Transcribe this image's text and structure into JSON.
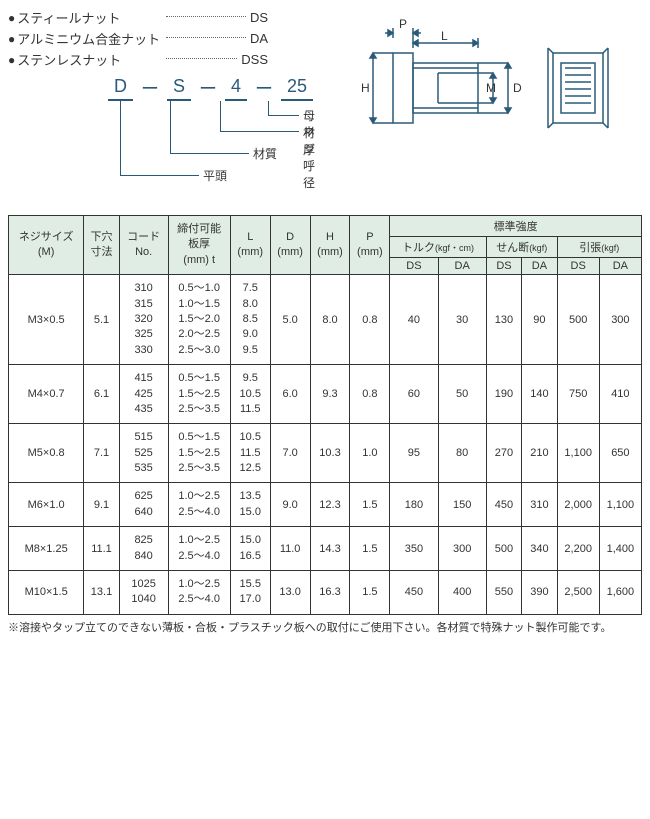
{
  "legend": [
    {
      "label": "スティールナット",
      "code": "DS"
    },
    {
      "label": "アルミニウム合金ナット",
      "code": "DA"
    },
    {
      "label": "ステンレスナット",
      "code": "DSS"
    }
  ],
  "codeDiagram": {
    "parts": [
      "D",
      "S",
      "4",
      "25"
    ],
    "labels": {
      "p0": "平頭",
      "p1": "材質",
      "p2": "ネジ呼径",
      "p3": "母材厚"
    }
  },
  "diagramLabels": {
    "P": "P",
    "L": "L",
    "H": "H",
    "M": "M",
    "D": "D"
  },
  "headers": {
    "size": "ネジサイズ\n(M)",
    "hole": "下穴\n寸法",
    "code": "コード\nNo.",
    "thickness": "締付可能\n板厚\n(mm) t",
    "L": "L\n(mm)",
    "D": "D\n(mm)",
    "H": "H\n(mm)",
    "P": "P\n(mm)",
    "strength": "標準強度",
    "torque": "トルク",
    "torqueUnit": "(kgf・cm)",
    "shear": "せん断",
    "shearUnit": "(kgf)",
    "tensile": "引張",
    "tensileUnit": "(kgf)",
    "DS": "DS",
    "DA": "DA"
  },
  "rows": [
    {
      "size": "M3×0.5",
      "hole": "5.1",
      "codes": "310\n315\n320\n325\n330",
      "thick": "0.5～1.0\n1.0～1.5\n1.5～2.0\n2.0～2.5\n2.5～3.0",
      "L": "7.5\n8.0\n8.5\n9.0\n9.5",
      "D": "5.0",
      "H": "8.0",
      "P": "0.8",
      "t_ds": "40",
      "t_da": "30",
      "s_ds": "130",
      "s_da": "90",
      "p_ds": "500",
      "p_da": "300"
    },
    {
      "size": "M4×0.7",
      "hole": "6.1",
      "codes": "415\n425\n435",
      "thick": "0.5～1.5\n1.5～2.5\n2.5～3.5",
      "L": "9.5\n10.5\n11.5",
      "D": "6.0",
      "H": "9.3",
      "P": "0.8",
      "t_ds": "60",
      "t_da": "50",
      "s_ds": "190",
      "s_da": "140",
      "p_ds": "750",
      "p_da": "410"
    },
    {
      "size": "M5×0.8",
      "hole": "7.1",
      "codes": "515\n525\n535",
      "thick": "0.5～1.5\n1.5～2.5\n2.5～3.5",
      "L": "10.5\n11.5\n12.5",
      "D": "7.0",
      "H": "10.3",
      "P": "1.0",
      "t_ds": "95",
      "t_da": "80",
      "s_ds": "270",
      "s_da": "210",
      "p_ds": "1,100",
      "p_da": "650"
    },
    {
      "size": "M6×1.0",
      "hole": "9.1",
      "codes": "625\n640",
      "thick": "1.0～2.5\n2.5～4.0",
      "L": "13.5\n15.0",
      "D": "9.0",
      "H": "12.3",
      "P": "1.5",
      "t_ds": "180",
      "t_da": "150",
      "s_ds": "450",
      "s_da": "310",
      "p_ds": "2,000",
      "p_da": "1,100"
    },
    {
      "size": "M8×1.25",
      "hole": "11.1",
      "codes": "825\n840",
      "thick": "1.0～2.5\n2.5～4.0",
      "L": "15.0\n16.5",
      "D": "11.0",
      "H": "14.3",
      "P": "1.5",
      "t_ds": "350",
      "t_da": "300",
      "s_ds": "500",
      "s_da": "340",
      "p_ds": "2,200",
      "p_da": "1,400"
    },
    {
      "size": "M10×1.5",
      "hole": "13.1",
      "codes": "1025\n1040",
      "thick": "1.0～2.5\n2.5～4.0",
      "L": "15.5\n17.0",
      "D": "13.0",
      "H": "16.3",
      "P": "1.5",
      "t_ds": "450",
      "t_da": "400",
      "s_ds": "550",
      "s_da": "390",
      "p_ds": "2,500",
      "p_da": "1,600"
    }
  ],
  "footnote": "※溶接やタップ立てのできない薄板・合板・プラスチック板への取付にご使用下さい。各材質で特殊ナット製作可能です。",
  "colors": {
    "headerBg": "#e0ede5",
    "stroke": "#2a5a7a"
  }
}
